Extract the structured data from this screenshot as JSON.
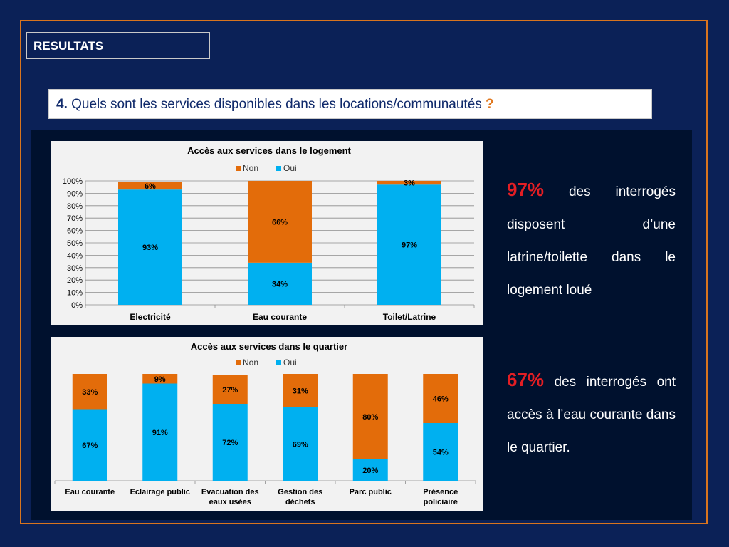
{
  "slide": {
    "section_title": "RESULTATS",
    "question_number": "4.",
    "question_text": "Quels sont les services disponibles dans les locations/communautés",
    "question_mark": "?"
  },
  "stats": [
    {
      "pct": "97%",
      "text": "des interrogés disposent d’une latrine/toilette dans le logement loué"
    },
    {
      "pct": "67%",
      "text": "des interrogés ont accès à l’eau courante dans le quartier."
    }
  ],
  "colors": {
    "non": "#e36c0a",
    "oui": "#00b0f0",
    "accent": "#d9741e",
    "background": "#0b2157",
    "panel": "#00112e"
  },
  "chart_data": [
    {
      "type": "bar",
      "stacked": true,
      "title": "Accès aux services dans le logement",
      "categories": [
        "Electricité",
        "Eau courante",
        "Toilet/Latrine"
      ],
      "series": [
        {
          "name": "Non",
          "values": [
            6,
            66,
            3
          ],
          "labels": [
            "6%",
            "66%",
            "3%"
          ]
        },
        {
          "name": "Oui",
          "values": [
            93,
            34,
            97
          ],
          "labels": [
            "93%",
            "34%",
            "97%"
          ]
        }
      ],
      "ylim": [
        0,
        100
      ],
      "yticks": [
        "0%",
        "10%",
        "20%",
        "30%",
        "40%",
        "50%",
        "60%",
        "70%",
        "80%",
        "90%",
        "100%"
      ],
      "grid": true,
      "legend": "top"
    },
    {
      "type": "bar",
      "stacked": true,
      "title": "Accès aux services dans le quartier",
      "categories": [
        [
          "Eau courante"
        ],
        [
          "Eclairage public"
        ],
        [
          "Evacuation des",
          "eaux usées"
        ],
        [
          "Gestion des",
          "déchets"
        ],
        [
          "Parc public"
        ],
        [
          "Présence",
          "policiaire"
        ]
      ],
      "series": [
        {
          "name": "Non",
          "values": [
            33,
            9,
            27,
            31,
            80,
            46
          ],
          "labels": [
            "33%",
            "9%",
            "27%",
            "31%",
            "80%",
            "46%"
          ]
        },
        {
          "name": "Oui",
          "values": [
            67,
            91,
            72,
            69,
            20,
            54
          ],
          "labels": [
            "67%",
            "91%",
            "72%",
            "69%",
            "20%",
            "54%"
          ]
        }
      ],
      "ylim": [
        0,
        100
      ],
      "grid": false,
      "legend": "top"
    }
  ]
}
